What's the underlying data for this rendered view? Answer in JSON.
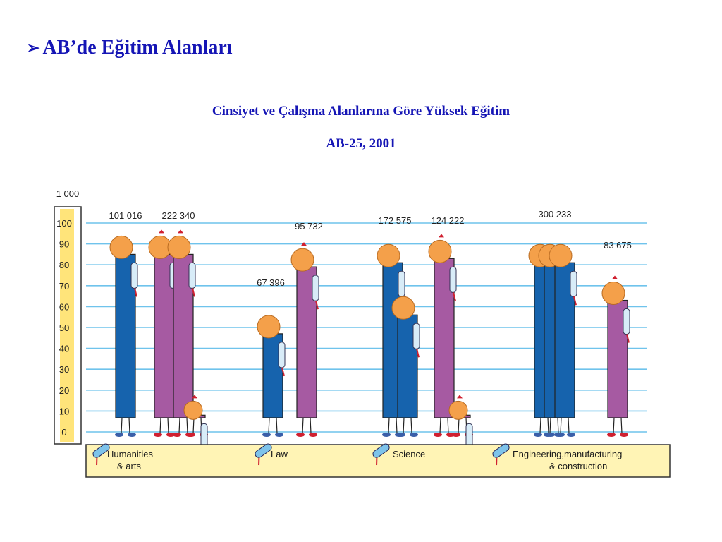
{
  "heading": {
    "bullet": "➢",
    "text": "AB’de Eğitim Alanları"
  },
  "title": "Cinsiyet ve Çalışma Alanlarına Göre Yüksek Eğitim",
  "subtitle": "AB-25, 2001",
  "colors": {
    "male": "#1663ad",
    "female": "#a65aa2",
    "grid": "#6fc3ec",
    "scale": "#ffe47a",
    "legend": "#fff4b5",
    "title": "#1515b5"
  },
  "chart_data": {
    "type": "bar",
    "unit_label": "1 000",
    "yticks": [
      0,
      10,
      20,
      30,
      40,
      50,
      60,
      70,
      80,
      90,
      100
    ],
    "ylim": [
      0,
      100
    ],
    "grid": true,
    "categories": [
      "Humanities & arts",
      "Law",
      "Science",
      "Engineering,manufacturing & construction"
    ],
    "series": [
      {
        "name": "male",
        "values": [
          101016,
          67396,
          172575,
          300233
        ]
      },
      {
        "name": "female",
        "values": [
          222340,
          95732,
          124222,
          83675
        ]
      }
    ],
    "labels": {
      "male": [
        "101 016",
        "67 396",
        "172 575",
        "300 233"
      ],
      "female": [
        "222 340",
        "95 732",
        "124 222",
        "83 675"
      ]
    },
    "legend_items": [
      {
        "line1": "Humanities",
        "line2": "& arts"
      },
      {
        "line1": "Law",
        "line2": ""
      },
      {
        "line1": "Science",
        "line2": ""
      },
      {
        "line1": "Engineering,manufacturing",
        "line2": "& construction"
      }
    ]
  }
}
